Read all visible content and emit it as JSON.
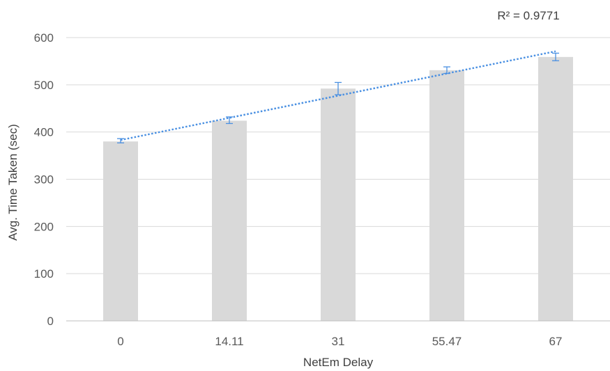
{
  "chart_data": {
    "type": "bar",
    "title": "",
    "xlabel": "NetEm Delay",
    "ylabel": "Avg. Time Taken (sec)",
    "categories": [
      "0",
      "14.11",
      "31",
      "55.47",
      "67"
    ],
    "values": [
      380,
      424,
      492,
      531,
      559
    ],
    "error": [
      {
        "low": 377,
        "high": 386
      },
      {
        "low": 418,
        "high": 432
      },
      {
        "low": 479,
        "high": 505
      },
      {
        "low": 524,
        "high": 538
      },
      {
        "low": 551,
        "high": 567
      }
    ],
    "trendline": {
      "type": "linear",
      "start": 383,
      "end": 571
    },
    "annotation": "R² = 0.9771",
    "ylim": [
      0,
      600
    ],
    "yticks": [
      "0",
      "100",
      "200",
      "300",
      "400",
      "500",
      "600"
    ],
    "grid": true,
    "legend": "none",
    "colors": {
      "bar": "#d9d9d9",
      "error_bar": "#4a90e2",
      "trendline": "#4a90e2",
      "grid": "#d9d9d9",
      "axis": "#bfbfbf"
    }
  }
}
